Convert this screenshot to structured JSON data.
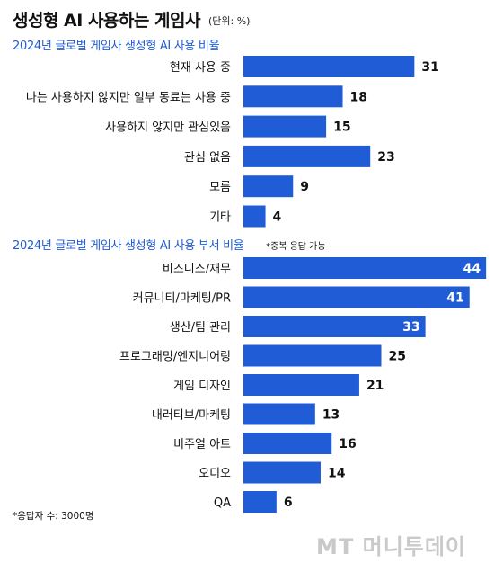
{
  "title": "생성형 AI 사용하는 게임사",
  "unit": "(단위: %)",
  "footnote": "*응답자 수: 3000명",
  "watermark": "MT 머니투데이",
  "colors": {
    "bar": "#1f5cd6",
    "label_inside": "#ffffff",
    "label_outside": "#111111"
  },
  "chart_data": [
    {
      "type": "bar",
      "orientation": "horizontal",
      "title": "2024년 글로벌 게임사 생성형 AI 사용 비율",
      "note": "",
      "categories": [
        "현재 사용 중",
        "나는 사용하지 않지만 일부 동료는 사용 중",
        "사용하지 않지만 관심있음",
        "관심 없음",
        "모름",
        "기타"
      ],
      "values": [
        31,
        18,
        15,
        23,
        9,
        4
      ]
    },
    {
      "type": "bar",
      "orientation": "horizontal",
      "title": "2024년 글로벌 게임사 생성형 AI 사용 부서 비율",
      "note": "*중복 응답 가능",
      "categories": [
        "비즈니스/재무",
        "커뮤니티/마케팅/PR",
        "생산/팀 관리",
        "프로그래밍/엔지니어링",
        "게임 디자인",
        "내러티브/마케팅",
        "비주얼 아트",
        "오디오",
        "QA"
      ],
      "values": [
        44,
        41,
        33,
        25,
        21,
        13,
        16,
        14,
        6
      ]
    }
  ]
}
